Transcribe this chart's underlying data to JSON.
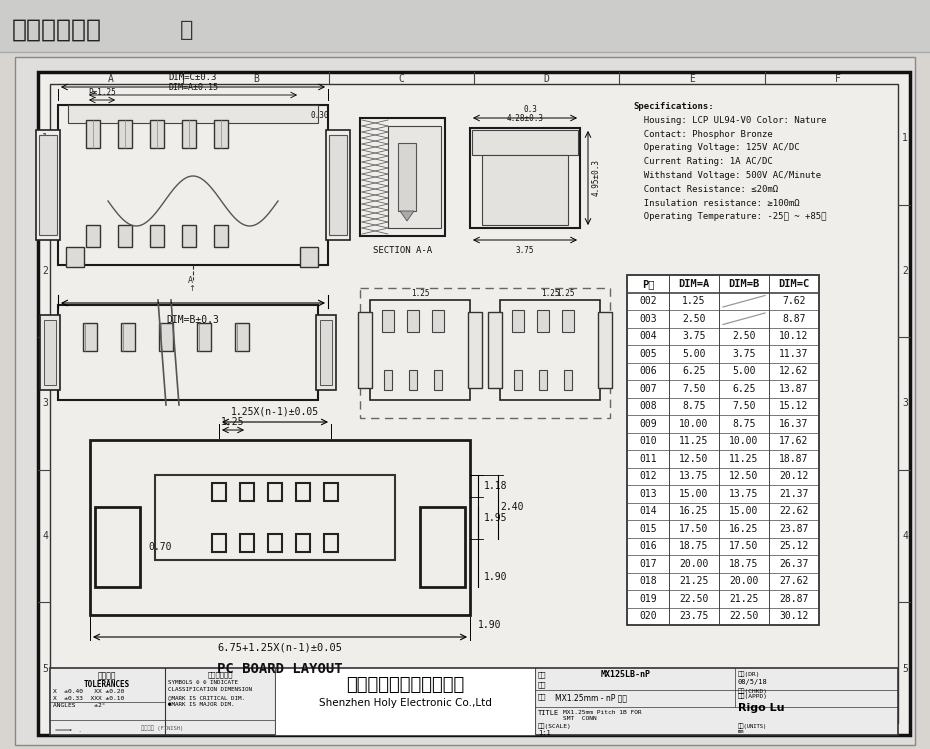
{
  "title": "在线图纸下载",
  "bg_light": "#d8d5d0",
  "bg_drawing": "#e8e8e4",
  "bg_paper": "#f0eeea",
  "specs": [
    "Specifications:",
    "  Housing: LCP UL94-V0 Color: Nature",
    "  Contact: Phosphor Bronze",
    "  Operating Voltage: 125V AC/DC",
    "  Current Rating: 1A AC/DC",
    "  Withstand Voltage: 500V AC/Minute",
    "  Contact Resistance: ≤20mΩ",
    "  Insulation resistance: ≥100mΩ",
    "  Operating Temperature: -25℃ ~ +85℃"
  ],
  "table_headers": [
    "P数",
    "DIM=A",
    "DIM=B",
    "DIM=C"
  ],
  "table_data": [
    [
      "002",
      "1.25",
      "",
      "7.62"
    ],
    [
      "003",
      "2.50",
      "",
      "8.87"
    ],
    [
      "004",
      "3.75",
      "2.50",
      "10.12"
    ],
    [
      "005",
      "5.00",
      "3.75",
      "11.37"
    ],
    [
      "006",
      "6.25",
      "5.00",
      "12.62"
    ],
    [
      "007",
      "7.50",
      "6.25",
      "13.87"
    ],
    [
      "008",
      "8.75",
      "7.50",
      "15.12"
    ],
    [
      "009",
      "10.00",
      "8.75",
      "16.37"
    ],
    [
      "010",
      "11.25",
      "10.00",
      "17.62"
    ],
    [
      "011",
      "12.50",
      "11.25",
      "18.87"
    ],
    [
      "012",
      "13.75",
      "12.50",
      "20.12"
    ],
    [
      "013",
      "15.00",
      "13.75",
      "21.37"
    ],
    [
      "014",
      "16.25",
      "15.00",
      "22.62"
    ],
    [
      "015",
      "17.50",
      "16.25",
      "23.87"
    ],
    [
      "016",
      "18.75",
      "17.50",
      "25.12"
    ],
    [
      "017",
      "20.00",
      "18.75",
      "26.37"
    ],
    [
      "018",
      "21.25",
      "20.00",
      "27.62"
    ],
    [
      "019",
      "22.50",
      "21.25",
      "28.87"
    ],
    [
      "020",
      "23.75",
      "22.50",
      "30.12"
    ]
  ],
  "company_cn": "深圳市宏利电子有限公司",
  "company_en": "Shenzhen Holy Electronic Co.,Ltd",
  "eng_num": "MX125LB-nP",
  "product_name": "MX1.25mm - nP 立贴",
  "title_full": "MX1.25mm Pitch 1B FOR\nSMT  CONN",
  "approved": "Rigo Lu",
  "date": "08/5/18",
  "scale_text": "1:1",
  "border_h": [
    "A",
    "B",
    "C",
    "D",
    "E",
    "F"
  ],
  "border_v": [
    "1",
    "2",
    "3",
    "4",
    "5"
  ],
  "section_label": "SECTION A-A",
  "pc_board_label": "PC BOARD LAYOUT"
}
